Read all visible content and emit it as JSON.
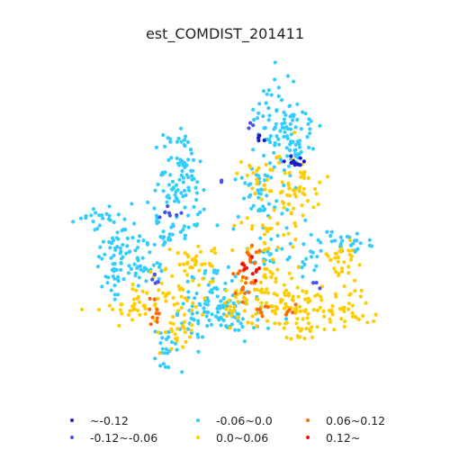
{
  "title": "est_COMDIST_201411",
  "legend": [
    {
      "label": "~-0.12",
      "color": "#1a1acc"
    },
    {
      "label": "-0.12~-0.06",
      "color": "#4455ee"
    },
    {
      "label": "-0.06~0.0",
      "color": "#33ccff"
    },
    {
      "label": "0.0~0.06",
      "color": "#ffcc00"
    },
    {
      "label": "0.06~0.12",
      "color": "#ff6a00"
    },
    {
      "label": "0.12~",
      "color": "#ee1111"
    }
  ]
}
